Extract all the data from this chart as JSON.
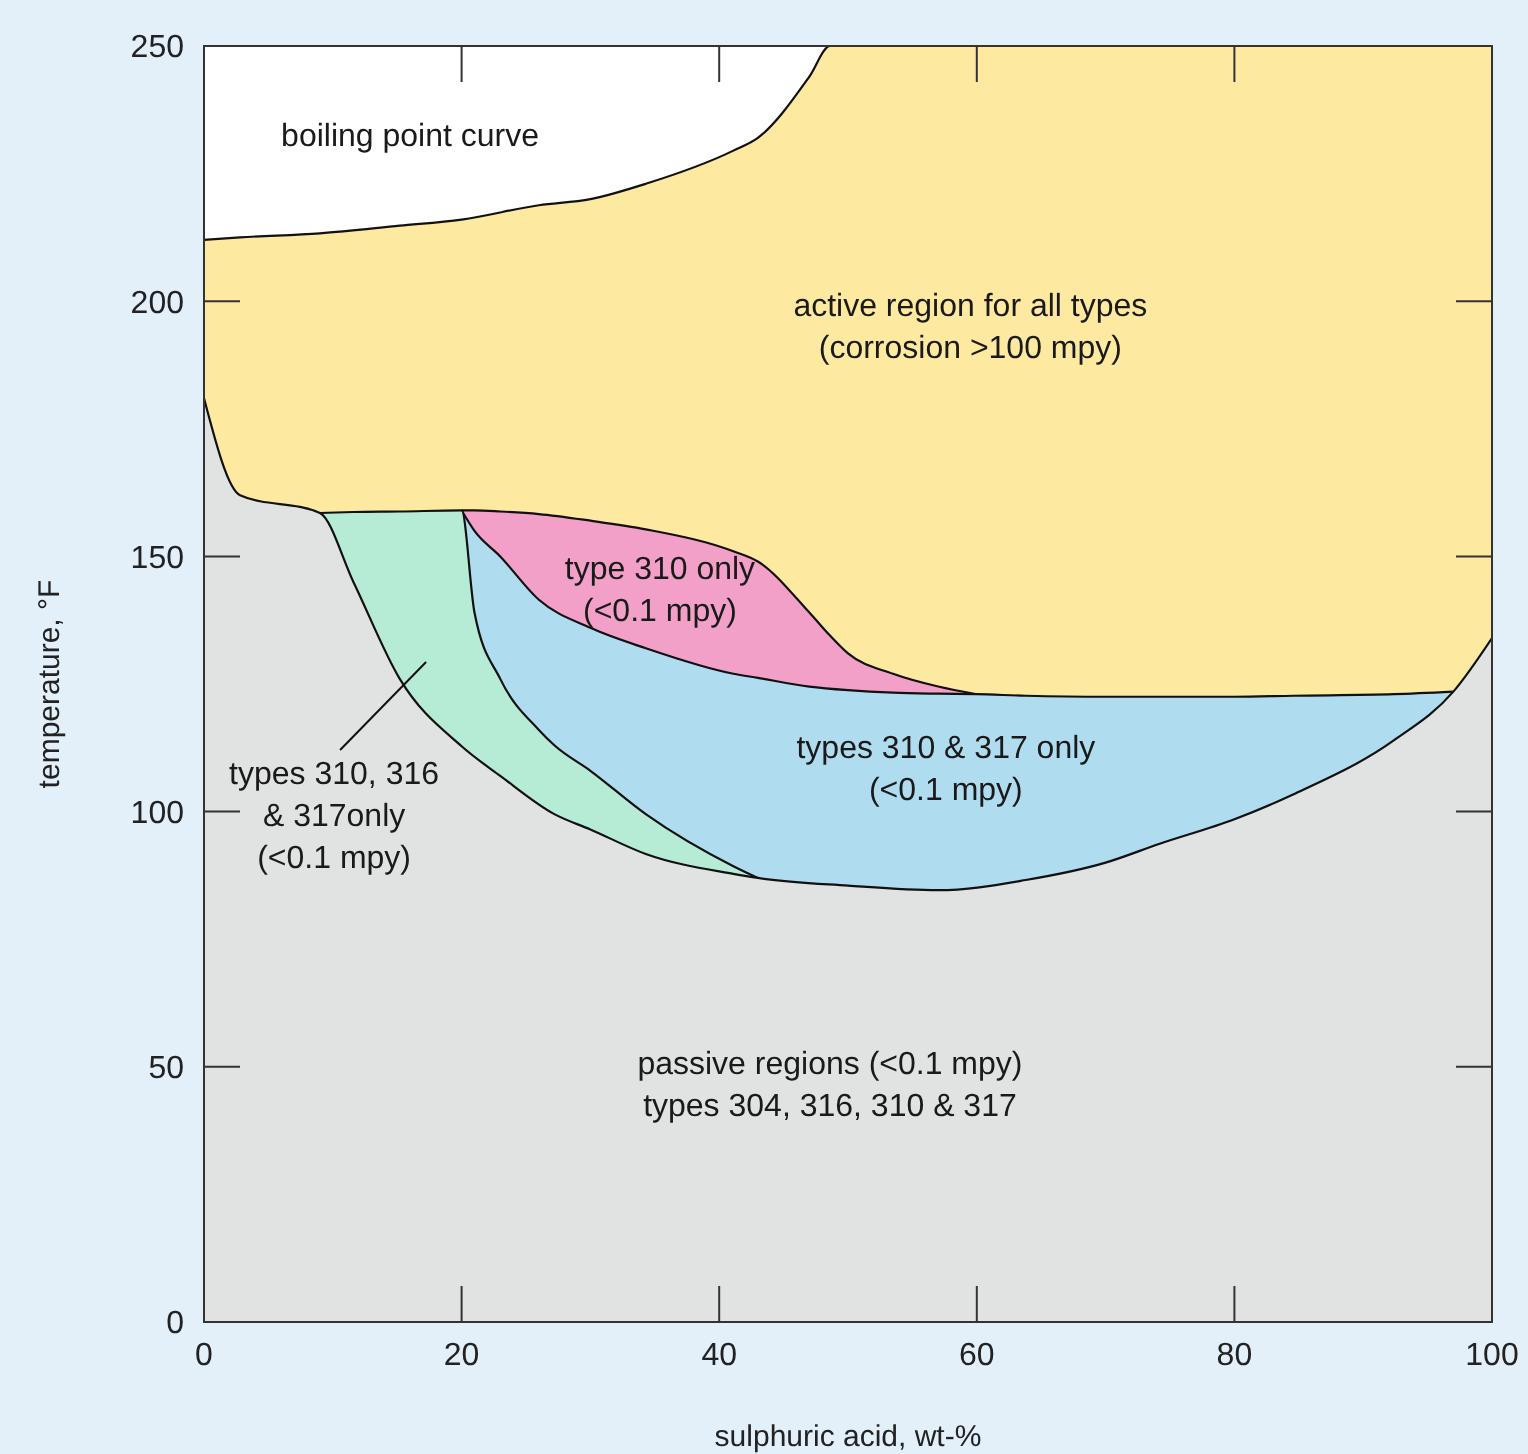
{
  "chart_data": {
    "type": "area",
    "xlabel": "sulphuric acid, wt-%",
    "ylabel": "temperature, °F",
    "xlim": [
      0,
      100
    ],
    "xticks": [
      0,
      20,
      40,
      60,
      80,
      100
    ],
    "ylim": [
      0,
      250
    ],
    "yticks": [
      0,
      50,
      100,
      150,
      200,
      250
    ],
    "series": [
      {
        "color": "#fde9a0",
        "x": [
          0,
          2.8,
          9,
          15.2,
          20,
          26,
          30,
          34.3,
          41.1,
          43,
          47,
          48.6,
          100
        ],
        "values": [
          212,
          212.5,
          213.3,
          214.8,
          216,
          218.8,
          220,
          223,
          229.5,
          232,
          244,
          250,
          250
        ]
      },
      {
        "color": "#f2a0c8",
        "x": [
          20,
          21,
          23,
          26,
          30,
          34.3,
          41.1,
          43,
          47,
          48.6,
          50,
          53.5,
          57,
          60
        ],
        "values": [
          159,
          159,
          158.8,
          158.3,
          157,
          155.3,
          151,
          149,
          139,
          134.5,
          131,
          127,
          124.5,
          123
        ]
      },
      {
        "color": "#b0dcf0",
        "x": [
          20,
          21,
          23,
          26,
          30,
          34.3,
          41.1,
          43,
          47,
          50,
          53.5,
          57,
          60,
          63.8,
          70,
          80,
          84.6,
          92.4,
          97
        ],
        "values": [
          159,
          155,
          150,
          141.5,
          136,
          132,
          127,
          126.2,
          124.5,
          123.8,
          123.3,
          123.1,
          123,
          122.7,
          122.5,
          122.5,
          122.7,
          123,
          123.5
        ]
      },
      {
        "color": "#b6ecd6",
        "x": [
          9,
          11.6,
          15.2,
          20,
          21,
          23,
          26,
          27.2,
          30,
          34.3,
          41.1,
          43
        ],
        "values": [
          158.5,
          158.7,
          158.8,
          159,
          139,
          126,
          116,
          113,
          108,
          99.5,
          89.3,
          87
        ]
      },
      {
        "color": "#e1e2e2",
        "x": [
          0,
          2.8,
          9,
          11.6,
          15.2,
          20,
          23,
          27.2,
          30,
          34.3,
          41.1,
          43,
          50,
          57,
          63.8,
          70,
          74.2,
          80,
          84.6,
          92.4,
          97,
          100
        ],
        "values": [
          181,
          162,
          158.5,
          145,
          126,
          112.8,
          107,
          99.5,
          96.5,
          91.7,
          87.8,
          87,
          85.5,
          84.6,
          86.6,
          90,
          93.7,
          98.5,
          103.4,
          114,
          123.5,
          134
        ]
      }
    ],
    "annotations": [
      "boiling point curve",
      "active region for all types\n(corrosion >100 mpy)",
      "type 310 only\n(<0.1 mpy)",
      "types 310 & 317 only\n(<0.1 mpy)",
      "types 310, 316\n& 317only\n(<0.1 mpy)",
      "passive regions (<0.1 mpy)\ntypes 304, 316, 310 & 317"
    ]
  }
}
